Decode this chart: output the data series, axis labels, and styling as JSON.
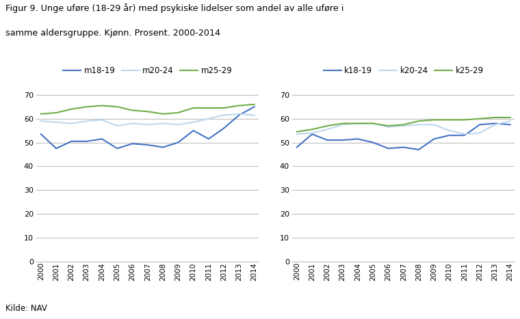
{
  "title_line1": "Figur 9. Unge uføre (18-29 år) med psykiske lidelser som andel av alle uføre i",
  "title_line2": "samme aldersgruppe. Kjønn. Prosent. 2000-2014",
  "source": "Kilde: NAV",
  "years": [
    2000,
    2001,
    2002,
    2003,
    2004,
    2005,
    2006,
    2007,
    2008,
    2009,
    2010,
    2011,
    2012,
    2013,
    2014
  ],
  "left": {
    "m18_19": [
      53.5,
      47.5,
      50.5,
      50.5,
      51.5,
      47.5,
      49.5,
      49.0,
      48.0,
      50.0,
      55.0,
      51.5,
      56.0,
      61.5,
      65.0
    ],
    "m20_24": [
      59.0,
      58.5,
      58.0,
      59.0,
      59.5,
      57.0,
      58.0,
      57.5,
      58.0,
      57.5,
      58.5,
      60.0,
      61.5,
      62.0,
      61.5
    ],
    "m25_29": [
      62.0,
      62.5,
      64.0,
      65.0,
      65.5,
      65.0,
      63.5,
      63.0,
      62.0,
      62.5,
      64.5,
      64.5,
      64.5,
      65.5,
      66.0
    ],
    "legend_labels": [
      "m18-19",
      "m20-24",
      "m25-29"
    ],
    "colors": [
      "#4472C4",
      "#BDD7EE",
      "#70AD47"
    ]
  },
  "right": {
    "k18_19": [
      48.0,
      53.5,
      51.0,
      51.0,
      51.5,
      50.0,
      47.5,
      48.0,
      47.0,
      51.5,
      53.0,
      53.0,
      57.5,
      58.0,
      57.5
    ],
    "k20_24": [
      53.5,
      54.0,
      55.5,
      57.5,
      58.0,
      58.0,
      56.5,
      57.0,
      57.5,
      57.5,
      55.0,
      53.5,
      54.0,
      57.5,
      59.0
    ],
    "k25_29": [
      54.5,
      55.5,
      57.0,
      58.0,
      58.0,
      58.0,
      57.0,
      57.5,
      59.0,
      59.5,
      59.5,
      59.5,
      60.0,
      60.5,
      60.5
    ],
    "legend_labels": [
      "k18-19",
      "k20-24",
      "k25-29"
    ],
    "colors": [
      "#4472C4",
      "#BDD7EE",
      "#70AD47"
    ]
  },
  "ylim": [
    0,
    75
  ],
  "yticks": [
    0,
    10,
    20,
    30,
    40,
    50,
    60,
    70
  ],
  "background_color": "#FFFFFF",
  "grid_color": "#C0C0C0"
}
